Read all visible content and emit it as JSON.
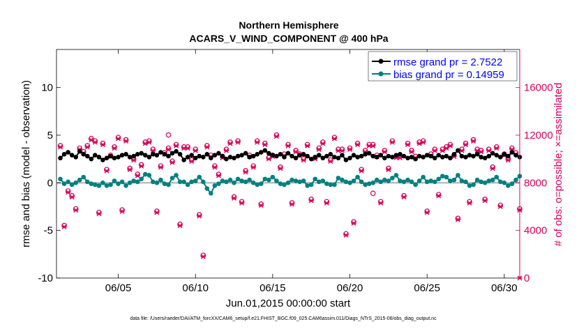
{
  "chart_data": {
    "type": "line",
    "title_line1": "Northern Hemisphere",
    "title_line2": "ACARS_V_WIND_COMPONENT @ 400 hPa",
    "xlabel": "Jun.01,2015 00:00:00 start",
    "ylabel_left": "rmse and bias (model - observation)",
    "ylabel_right": "# of obs: o=possible; ×=assimilated",
    "footnote": "data file: /Users/raeder/DAI/ATM_forcXX/CAM6_setup/f.e21.FHIST_BGC.f09_025.CAM6assim.011/Diags_NTrS_2015-06/obs_diag_output.nc",
    "x_range_days": [
      1.0,
      31.0
    ],
    "x_ticks": [
      {
        "day": 5,
        "label": "06/05"
      },
      {
        "day": 10,
        "label": "06/10"
      },
      {
        "day": 15,
        "label": "06/15"
      },
      {
        "day": 20,
        "label": "06/20"
      },
      {
        "day": 25,
        "label": "06/25"
      },
      {
        "day": 30,
        "label": "06/30"
      }
    ],
    "ylim_left": [
      -10,
      14
    ],
    "yticks_left": [
      -10,
      -5,
      0,
      5,
      10
    ],
    "ylim_right": [
      0,
      19200
    ],
    "yticks_right": [
      0,
      4000,
      8000,
      12000,
      16000
    ],
    "zero_line": 0,
    "legend": [
      {
        "label": "rmse grand pr = 2.7522",
        "color": "#000000"
      },
      {
        "label": "bias grand pr = 0.14959",
        "color": "#008080"
      }
    ],
    "colors": {
      "rmse": "#000000",
      "bias": "#008080",
      "obs": "#d6005a",
      "zero": "#b0b0b0",
      "axis_right": "#d6005a",
      "legend_text": "#0000ff"
    },
    "series": {
      "x_start_day": 1.25,
      "x_step_days": 0.25,
      "rmse": [
        2.6,
        3.0,
        3.2,
        2.9,
        2.7,
        3.3,
        3.0,
        2.8,
        2.5,
        2.9,
        2.7,
        2.4,
        2.6,
        2.8,
        2.6,
        2.7,
        2.9,
        3.0,
        2.7,
        2.8,
        3.0,
        3.1,
        2.9,
        2.7,
        3.0,
        2.9,
        3.2,
        3.0,
        2.8,
        3.1,
        3.3,
        3.0,
        2.4,
        2.7,
        2.9,
        2.6,
        2.8,
        2.7,
        3.0,
        2.6,
        2.9,
        3.1,
        2.8,
        2.5,
        2.7,
        2.6,
        2.8,
        2.9,
        3.1,
        2.7,
        2.8,
        3.0,
        3.2,
        3.4,
        3.1,
        2.9,
        2.8,
        3.0,
        2.7,
        3.1,
        2.8,
        2.6,
        2.9,
        3.0,
        2.8,
        2.5,
        2.7,
        2.9,
        2.6,
        2.8,
        3.0,
        2.7,
        2.6,
        2.9,
        2.4,
        2.6,
        2.9,
        2.7,
        2.8,
        3.0,
        3.1,
        2.8,
        2.7,
        2.9,
        2.6,
        2.8,
        2.7,
        2.9,
        3.0,
        2.8,
        2.6,
        2.7,
        2.5,
        2.8,
        2.7,
        2.9,
        2.8,
        2.6,
        2.9,
        2.7,
        2.8,
        2.6,
        3.0,
        3.4,
        2.8,
        2.7,
        2.9,
        2.8,
        3.0,
        2.7,
        2.6,
        2.8,
        3.1,
        2.9,
        2.7,
        3.0,
        2.8,
        3.2,
        2.9,
        2.7
      ],
      "bias": [
        0.4,
        -0.1,
        0.1,
        -0.2,
        0.0,
        0.3,
        0.6,
        0.1,
        -0.1,
        -0.2,
        -0.3,
        0.0,
        -0.3,
        -0.2,
        0.2,
        -0.1,
        0.1,
        -0.3,
        0.0,
        0.2,
        0.1,
        0.4,
        0.9,
        0.8,
        0.1,
        0.0,
        0.3,
        -0.1,
        -0.2,
        0.5,
        0.8,
        0.1,
        0.1,
        -0.2,
        0.1,
        0.2,
        0.6,
        0.1,
        -0.6,
        -1.1,
        -0.3,
        -0.1,
        0.2,
        0.1,
        0.3,
        0.0,
        0.4,
        0.2,
        0.1,
        0.3,
        0.0,
        -0.2,
        -0.1,
        0.4,
        0.3,
        0.6,
        0.2,
        -0.1,
        -0.2,
        0.0,
        0.3,
        0.2,
        0.1,
        0.2,
        -0.3,
        -0.2,
        0.4,
        0.1,
        0.2,
        -0.1,
        -0.2,
        -0.2,
        0.5,
        0.3,
        0.1,
        0.0,
        0.2,
        0.6,
        0.1,
        -0.2,
        -0.1,
        0.0,
        0.3,
        0.1,
        0.3,
        0.2,
        0.5,
        0.8,
        0.2,
        0.1,
        0.3,
        0.1,
        -0.2,
        0.2,
        0.6,
        0.1,
        0.2,
        0.1,
        0.4,
        0.7,
        0.6,
        0.2,
        0.3,
        0.8,
        0.2,
        0.1,
        -0.3,
        -0.2,
        0.3,
        0.1,
        0.0,
        0.2,
        0.3,
        0.6,
        0.1,
        0.0,
        -0.3,
        -0.1,
        0.3,
        0.7
      ],
      "obs_possible": [
        11000,
        4300,
        7200,
        6800,
        5700,
        10800,
        10500,
        11000,
        11600,
        11400,
        5400,
        11200,
        9000,
        10200,
        10900,
        11700,
        5600,
        11500,
        9100,
        9900,
        8600,
        9400,
        11300,
        11400,
        10700,
        5500,
        9300,
        10400,
        10800,
        9700,
        11100,
        4400,
        10900,
        10900,
        9800,
        10700,
        5200,
        1800,
        11000,
        10200,
        9300,
        8600,
        10100,
        10700,
        11300,
        6700,
        11400,
        6300,
        8900,
        10200,
        9300,
        11400,
        6100,
        11200,
        10000,
        10200,
        11900,
        9200,
        10300,
        11100,
        6200,
        10600,
        10300,
        9900,
        11100,
        6500,
        10000,
        10800,
        11300,
        6300,
        9800,
        11700,
        10700,
        10700,
        3600,
        10800,
        4600,
        11200,
        9000,
        10600,
        11100,
        11100,
        10200,
        6300,
        10600,
        9100,
        11400,
        10100,
        10100,
        6800,
        11200,
        10600,
        10100,
        11300,
        11400,
        5500,
        10300,
        10700,
        6900,
        10700,
        10900,
        11100,
        10200,
        4900,
        10700,
        11200,
        6300,
        11500,
        10700,
        10600,
        6500,
        10700,
        9200,
        10900,
        6000,
        10300,
        9900,
        10800,
        10400,
        5700
      ],
      "obs_assimilated": [
        11000,
        4300,
        7200,
        6800,
        5700,
        10800,
        10500,
        11000,
        11600,
        11400,
        5400,
        11200,
        9000,
        10200,
        10900,
        11700,
        5600,
        11500,
        9100,
        9900,
        8600,
        9400,
        11300,
        11400,
        10700,
        5500,
        9300,
        10400,
        10800,
        9700,
        11100,
        4400,
        10900,
        10900,
        9800,
        10700,
        5200,
        1800,
        11000,
        10200,
        9300,
        8600,
        10100,
        10700,
        11300,
        6700,
        11400,
        6300,
        8900,
        10200,
        9300,
        11400,
        6100,
        11200,
        10000,
        10200,
        11900,
        9200,
        10300,
        11100,
        6200,
        10600,
        10300,
        9900,
        11100,
        6500,
        10000,
        10800,
        11300,
        6300,
        9800,
        11700,
        10700,
        10700,
        3600,
        10800,
        4600,
        11200,
        9000,
        10600,
        11100,
        11100,
        10200,
        6300,
        10600,
        9100,
        11400,
        10100,
        10100,
        6800,
        11200,
        10600,
        10100,
        11300,
        11400,
        5500,
        10300,
        10700,
        6900,
        10700,
        10900,
        11100,
        10200,
        4900,
        10700,
        11200,
        6300,
        11500,
        10700,
        10600,
        6500,
        10700,
        9200,
        10900,
        6000,
        10300,
        9900,
        10800,
        10400,
        5700
      ]
    },
    "extra_marks": {
      "possible_only": [
        {
          "day": 8.25,
          "obs": 11900
        },
        {
          "day": 21.5,
          "obs": 7000
        }
      ],
      "assimilated_only": [
        {
          "day": 31.0,
          "obs": 0
        }
      ]
    }
  }
}
